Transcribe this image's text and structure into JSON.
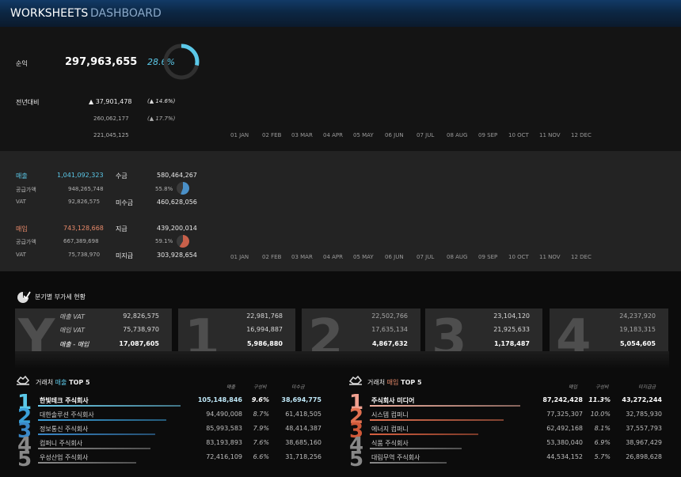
{
  "header": {
    "title_main": "WORKSHEETS",
    "title_sub": "DASHBOARD"
  },
  "profit": {
    "label": "순익",
    "value": "297,963,655",
    "percent": "28.6%",
    "ring_fraction": 0.286,
    "yoy_label": "전년대비",
    "yoy_delta": "▲ 37,901,478",
    "yoy_delta_pct": "(▲ 14.6%)",
    "prev_value": "260,062,177",
    "prev_pct": "(▲ 17.7%)",
    "prev2_value": "221,045,125"
  },
  "months": [
    "01 JAN",
    "02 FEB",
    "03 MAR",
    "04 APR",
    "05 MAY",
    "06 JUN",
    "07 JUL",
    "08 AUG",
    "09 SEP",
    "10 OCT",
    "11 NOV",
    "12 DEC"
  ],
  "sales": {
    "label": "매출",
    "value": "1,041,092,323",
    "supply_label": "공급가액",
    "supply": "948,265,748",
    "vat_label": "VAT",
    "vat": "92,826,575",
    "collected_label": "수금",
    "collected": "580,464,267",
    "collected_pct": "55.8%",
    "collected_fraction": 0.558,
    "uncollected_label": "미수금",
    "uncollected": "460,628,056",
    "accent": "#5bc8e8",
    "pie_color": "#4a90c8"
  },
  "purchase": {
    "label": "매입",
    "value": "743,128,668",
    "supply_label": "공급가액",
    "supply": "667,389,698",
    "vat_label": "VAT",
    "vat": "75,738,970",
    "paid_label": "지급",
    "paid": "439,200,014",
    "paid_pct": "59.1%",
    "paid_fraction": 0.591,
    "unpaid_label": "미지급",
    "unpaid": "303,928,654",
    "accent": "#e88a6a",
    "pie_color": "#c8604a"
  },
  "vat_section": {
    "title": "분기별 부가세 현황",
    "year": {
      "letter": "Y",
      "row_labels": [
        "매출 VAT",
        "매입 VAT",
        "매출 - 매입"
      ],
      "values": [
        "92,826,575",
        "75,738,970",
        "17,087,605"
      ]
    },
    "quarters": [
      {
        "letter": "1",
        "values": [
          "22,981,768",
          "16,994,887",
          "5,986,880"
        ]
      },
      {
        "letter": "2",
        "values": [
          "22,502,766",
          "17,635,134",
          "4,867,632"
        ]
      },
      {
        "letter": "3",
        "values": [
          "23,104,120",
          "21,925,633",
          "1,178,487"
        ]
      },
      {
        "letter": "4",
        "values": [
          "24,237,920",
          "19,183,315",
          "5,054,605"
        ]
      }
    ]
  },
  "top_sales": {
    "title_prefix": "거래처 ",
    "title_key": "매출",
    "title_suffix": " TOP 5",
    "headers": [
      "매출",
      "구성비",
      "미수금"
    ],
    "rows": [
      {
        "rank": "1",
        "name": "한빛테크 주식회사",
        "amount": "105,148,846",
        "share": "9.6%",
        "remain": "38,694,775",
        "bar": 1.0
      },
      {
        "rank": "2",
        "name": "대한솔루션 주식회사",
        "amount": "94,490,008",
        "share": "8.7%",
        "remain": "61,418,505",
        "bar": 0.9
      },
      {
        "rank": "3",
        "name": "정보통신 주식회사",
        "amount": "85,993,583",
        "share": "7.9%",
        "remain": "48,414,387",
        "bar": 0.82
      },
      {
        "rank": "4",
        "name": "컴퍼니 주식회사",
        "amount": "83,193,893",
        "share": "7.6%",
        "remain": "38,685,160",
        "bar": 0.79
      },
      {
        "rank": "5",
        "name": "우성산업 주식회사",
        "amount": "72,416,109",
        "share": "6.6%",
        "remain": "31,718,256",
        "bar": 0.69
      }
    ]
  },
  "top_purchase": {
    "title_prefix": "거래처 ",
    "title_key": "매입",
    "title_suffix": " TOP 5",
    "headers": [
      "매입",
      "구성비",
      "미지급금"
    ],
    "rows": [
      {
        "rank": "1",
        "name": "주식회사 미디어",
        "amount": "87,242,428",
        "share": "11.3%",
        "remain": "43,272,244",
        "bar": 1.0
      },
      {
        "rank": "2",
        "name": "시스템 컴퍼니",
        "amount": "77,325,307",
        "share": "10.0%",
        "remain": "32,785,930",
        "bar": 0.89
      },
      {
        "rank": "3",
        "name": "에너지 컴퍼니",
        "amount": "62,492,168",
        "share": "8.1%",
        "remain": "37,557,793",
        "bar": 0.72
      },
      {
        "rank": "4",
        "name": "식품 주식회사",
        "amount": "53,380,040",
        "share": "6.9%",
        "remain": "38,967,429",
        "bar": 0.61
      },
      {
        "rank": "5",
        "name": "대림무역 주식회사",
        "amount": "44,534,152",
        "share": "5.7%",
        "remain": "26,898,628",
        "bar": 0.51
      }
    ]
  }
}
